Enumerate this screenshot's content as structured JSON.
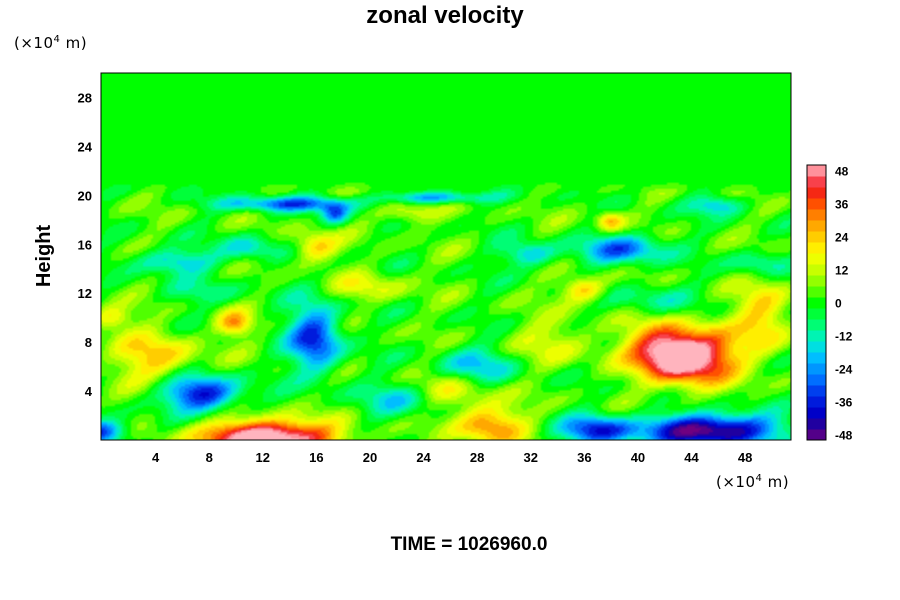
{
  "chart_data": {
    "type": "heatmap",
    "title": "zonal velocity",
    "ylabel": "Height",
    "xlabel": "",
    "y_unit": {
      "prefix": "(×10",
      "exp": "4",
      "suffix": " m)"
    },
    "x_unit": {
      "prefix": "(×10",
      "exp": "4",
      "suffix": " m)"
    },
    "xlim": [
      0,
      51.5
    ],
    "ylim": [
      0,
      30
    ],
    "x_ticks": [
      4,
      8,
      12,
      16,
      20,
      24,
      28,
      32,
      36,
      40,
      44,
      48
    ],
    "y_ticks": [
      4,
      8,
      12,
      16,
      20,
      24,
      28
    ],
    "colorbar": {
      "range": [
        -50,
        50
      ],
      "ticks": [
        48,
        36,
        24,
        12,
        0,
        -12,
        -24,
        -36,
        -48
      ]
    },
    "field_features": [
      {
        "region": "uniform layer above z≈20.5",
        "value": 0
      },
      {
        "region": "strong maximum near x≈44, y≈7",
        "value": 50
      },
      {
        "region": "strong maximum near x≈10–16, y≈0",
        "value": 50
      },
      {
        "region": "strong minimum near x≈44–48, y≈0–1",
        "value": -50
      },
      {
        "region": "minimum near x≈8, y≈3.5",
        "value": -38
      },
      {
        "region": "minimum near x≈16, y≈8.5",
        "value": -33
      },
      {
        "region": "positive band near x≈0–4, y≈7",
        "value": 20
      }
    ],
    "footer": "TIME = 1026960.0"
  }
}
